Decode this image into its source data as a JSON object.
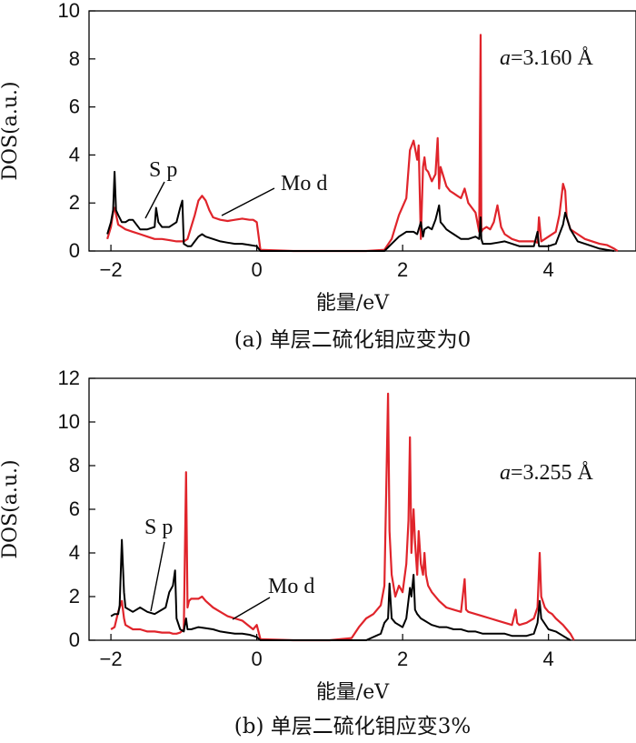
{
  "colors": {
    "s_p": "#000000",
    "mo_d": "#e0242b"
  },
  "chart_data": [
    {
      "type": "line",
      "caption": "(a) 单层二硫化钼应变为0",
      "xlabel": "能量/eV",
      "ylabel": "DOS(a.u.)",
      "xlim": [
        -2.3,
        5.2
      ],
      "ylim": [
        0,
        10
      ],
      "xticks": [
        -2,
        0,
        2,
        4
      ],
      "xtick_labels": [
        "−2",
        "0",
        "2",
        "4"
      ],
      "yticks": [
        0,
        2,
        4,
        6,
        8,
        10
      ],
      "ytick_labels": [
        "0",
        "2",
        "4",
        "6",
        "8",
        "10"
      ],
      "annotation": {
        "prefix": "a",
        "value": "=3.160 Å"
      },
      "series": [
        {
          "name": "Mo d",
          "color": "#e0242b",
          "x": [
            -2.05,
            -2.0,
            -1.97,
            -1.95,
            -1.9,
            -1.85,
            -1.8,
            -1.7,
            -1.6,
            -1.5,
            -1.4,
            -1.3,
            -1.2,
            -1.1,
            -1.0,
            -0.95,
            -0.9,
            -0.85,
            -0.8,
            -0.75,
            -0.7,
            -0.65,
            -0.6,
            -0.5,
            -0.4,
            -0.3,
            -0.2,
            -0.1,
            -0.05,
            0.0,
            0.05,
            0.5,
            1.0,
            1.5,
            1.75,
            1.85,
            1.95,
            2.05,
            2.1,
            2.15,
            2.2,
            2.22,
            2.25,
            2.28,
            2.3,
            2.32,
            2.35,
            2.4,
            2.45,
            2.48,
            2.5,
            2.52,
            2.55,
            2.6,
            2.65,
            2.7,
            2.75,
            2.8,
            2.85,
            2.9,
            2.95,
            3.0,
            3.05,
            3.07,
            3.08,
            3.1,
            3.15,
            3.2,
            3.25,
            3.3,
            3.35,
            3.4,
            3.5,
            3.6,
            3.7,
            3.8,
            3.85,
            3.87,
            3.9,
            3.95,
            4.0,
            4.1,
            4.15,
            4.2,
            4.23,
            4.25,
            4.3,
            4.4,
            4.5,
            4.6,
            4.7,
            4.8,
            4.9,
            4.95
          ],
          "y": [
            0.5,
            1.0,
            1.6,
            1.8,
            1.1,
            1.0,
            0.9,
            0.8,
            0.7,
            0.6,
            0.5,
            0.5,
            0.45,
            0.4,
            0.4,
            0.5,
            1.0,
            1.5,
            2.1,
            2.3,
            2.1,
            1.7,
            1.4,
            1.3,
            1.25,
            1.3,
            1.35,
            1.3,
            1.3,
            1.2,
            0.05,
            0.0,
            0.0,
            0.0,
            0.05,
            0.5,
            1.5,
            2.2,
            4.2,
            4.6,
            3.8,
            4.4,
            0.5,
            3.5,
            3.9,
            3.4,
            3.3,
            2.9,
            3.2,
            4.7,
            2.6,
            3.5,
            3.2,
            2.7,
            2.5,
            2.4,
            2.3,
            2.2,
            2.6,
            2.0,
            1.8,
            1.6,
            0.8,
            9.0,
            0.8,
            0.9,
            1.0,
            0.9,
            1.2,
            1.9,
            1.0,
            0.7,
            0.5,
            0.4,
            0.4,
            0.4,
            0.35,
            1.4,
            0.4,
            0.5,
            0.6,
            0.8,
            1.5,
            2.8,
            2.5,
            1.4,
            0.9,
            0.7,
            0.5,
            0.4,
            0.3,
            0.25,
            0.1,
            0.0
          ]
        },
        {
          "name": "S p",
          "color": "#000000",
          "x": [
            -2.05,
            -2.0,
            -1.97,
            -1.95,
            -1.93,
            -1.9,
            -1.85,
            -1.8,
            -1.75,
            -1.7,
            -1.6,
            -1.5,
            -1.4,
            -1.38,
            -1.35,
            -1.3,
            -1.2,
            -1.1,
            -1.05,
            -1.02,
            -1.0,
            -0.95,
            -0.9,
            -0.85,
            -0.8,
            -0.75,
            -0.7,
            -0.6,
            -0.5,
            -0.4,
            -0.3,
            -0.2,
            -0.1,
            0.0,
            0.05,
            1.75,
            1.85,
            1.95,
            2.05,
            2.15,
            2.2,
            2.25,
            2.28,
            2.3,
            2.35,
            2.4,
            2.45,
            2.5,
            2.52,
            2.55,
            2.6,
            2.65,
            2.7,
            2.8,
            2.9,
            3.0,
            3.05,
            3.07,
            3.08,
            3.1,
            3.2,
            3.3,
            3.4,
            3.5,
            3.6,
            3.7,
            3.8,
            3.85,
            3.87,
            3.9,
            4.0,
            4.1,
            4.2,
            4.23,
            4.3,
            4.4,
            4.5,
            4.6,
            4.7,
            4.8,
            4.9
          ],
          "y": [
            0.7,
            1.2,
            1.7,
            3.3,
            1.7,
            1.5,
            1.2,
            1.2,
            1.3,
            1.3,
            0.9,
            0.9,
            1.0,
            1.8,
            1.2,
            1.0,
            1.0,
            1.2,
            1.8,
            2.1,
            0.3,
            0.2,
            0.2,
            0.4,
            0.6,
            0.7,
            0.6,
            0.5,
            0.4,
            0.35,
            0.3,
            0.3,
            0.25,
            0.2,
            0.0,
            0.0,
            0.3,
            0.6,
            0.8,
            0.8,
            0.7,
            1.2,
            0.6,
            0.9,
            1.0,
            0.9,
            1.3,
            1.9,
            1.2,
            1.1,
            0.9,
            0.8,
            0.7,
            0.5,
            0.5,
            0.6,
            0.5,
            1.4,
            0.5,
            0.3,
            0.3,
            0.35,
            0.4,
            0.3,
            0.2,
            0.2,
            0.2,
            0.8,
            0.2,
            0.2,
            0.2,
            0.3,
            1.1,
            1.6,
            0.9,
            0.4,
            0.3,
            0.2,
            0.1,
            0.05,
            0.0
          ]
        }
      ],
      "series_labels": [
        {
          "name": "S p",
          "text": "S p"
        },
        {
          "name": "Mo d",
          "text": "Mo d"
        }
      ]
    },
    {
      "type": "line",
      "caption": "(b) 单层二硫化钼应变3%",
      "xlabel": "能量/eV",
      "ylabel": "DOS(a.u.)",
      "xlim": [
        -2.3,
        5.2
      ],
      "ylim": [
        0,
        12
      ],
      "xticks": [
        -2,
        0,
        2,
        4
      ],
      "xtick_labels": [
        "−2",
        "0",
        "2",
        "4"
      ],
      "yticks": [
        0,
        2,
        4,
        6,
        8,
        10,
        12
      ],
      "ytick_labels": [
        "0",
        "2",
        "4",
        "6",
        "8",
        "10",
        "12"
      ],
      "annotation": {
        "prefix": "a",
        "value": "=3.255 Å"
      },
      "series": [
        {
          "name": "Mo d",
          "color": "#e0242b",
          "x": [
            -2.0,
            -1.95,
            -1.9,
            -1.85,
            -1.82,
            -1.8,
            -1.75,
            -1.7,
            -1.6,
            -1.5,
            -1.4,
            -1.3,
            -1.2,
            -1.15,
            -1.1,
            -1.05,
            -1.0,
            -0.97,
            -0.95,
            -0.93,
            -0.9,
            -0.8,
            -0.75,
            -0.7,
            -0.6,
            -0.5,
            -0.4,
            -0.3,
            -0.2,
            -0.05,
            0.0,
            0.05,
            0.5,
            1.0,
            1.3,
            1.4,
            1.5,
            1.6,
            1.7,
            1.75,
            1.8,
            1.82,
            1.85,
            1.9,
            1.95,
            2.0,
            2.05,
            2.08,
            2.1,
            2.12,
            2.15,
            2.17,
            2.2,
            2.22,
            2.25,
            2.28,
            2.3,
            2.32,
            2.35,
            2.4,
            2.5,
            2.6,
            2.7,
            2.8,
            2.85,
            2.87,
            2.9,
            3.0,
            3.1,
            3.2,
            3.3,
            3.4,
            3.5,
            3.55,
            3.57,
            3.6,
            3.7,
            3.8,
            3.85,
            3.88,
            3.9,
            3.95,
            4.0,
            4.05,
            4.1,
            4.2,
            4.25,
            4.3,
            4.35
          ],
          "y": [
            0.5,
            0.6,
            1.3,
            1.8,
            1.0,
            0.7,
            0.6,
            0.5,
            0.5,
            0.4,
            0.4,
            0.35,
            0.35,
            0.3,
            0.3,
            0.35,
            0.5,
            7.7,
            1.5,
            1.8,
            1.9,
            1.9,
            2.0,
            1.8,
            1.5,
            1.3,
            1.1,
            1.0,
            0.9,
            0.5,
            0.7,
            0.05,
            0.0,
            0.0,
            0.1,
            0.6,
            1.0,
            1.2,
            1.6,
            2.5,
            11.3,
            5.0,
            3.0,
            2.0,
            2.5,
            2.2,
            3.5,
            5.5,
            9.3,
            4.0,
            6.0,
            4.5,
            3.0,
            5.0,
            3.5,
            3.0,
            4.0,
            3.0,
            2.5,
            2.2,
            1.8,
            1.5,
            1.4,
            1.3,
            2.8,
            1.4,
            1.3,
            1.2,
            1.1,
            1.0,
            0.9,
            0.8,
            0.7,
            1.4,
            0.8,
            0.7,
            0.8,
            1.0,
            1.5,
            4.0,
            2.0,
            1.5,
            1.3,
            1.2,
            1.0,
            0.7,
            0.5,
            0.3,
            0.0
          ]
        },
        {
          "name": "S p",
          "color": "#000000",
          "x": [
            -2.0,
            -1.95,
            -1.9,
            -1.88,
            -1.85,
            -1.82,
            -1.8,
            -1.7,
            -1.6,
            -1.5,
            -1.4,
            -1.3,
            -1.25,
            -1.2,
            -1.15,
            -1.12,
            -1.1,
            -1.05,
            -1.0,
            -0.97,
            -0.95,
            -0.9,
            -0.8,
            -0.7,
            -0.6,
            -0.5,
            -0.4,
            -0.3,
            -0.2,
            -0.1,
            -0.05,
            0.0,
            0.05,
            1.5,
            1.7,
            1.75,
            1.8,
            1.82,
            1.85,
            1.9,
            2.0,
            2.05,
            2.1,
            2.12,
            2.15,
            2.17,
            2.2,
            2.25,
            2.3,
            2.35,
            2.4,
            2.5,
            2.6,
            2.7,
            2.8,
            2.9,
            3.0,
            3.1,
            3.2,
            3.3,
            3.4,
            3.5,
            3.6,
            3.7,
            3.8,
            3.85,
            3.88,
            3.9,
            4.0,
            4.1,
            4.2,
            4.25,
            4.3
          ],
          "y": [
            1.1,
            1.2,
            1.2,
            1.6,
            4.6,
            2.2,
            1.5,
            1.3,
            1.5,
            1.3,
            1.2,
            1.4,
            1.5,
            2.2,
            2.5,
            3.2,
            1.0,
            0.5,
            0.4,
            1.0,
            0.5,
            0.5,
            0.6,
            0.55,
            0.5,
            0.4,
            0.35,
            0.3,
            0.3,
            0.25,
            0.2,
            0.15,
            0.0,
            0.0,
            0.3,
            0.8,
            1.0,
            2.6,
            1.0,
            0.8,
            0.6,
            1.0,
            2.4,
            2.0,
            3.0,
            1.4,
            1.2,
            1.0,
            0.9,
            0.8,
            0.7,
            0.6,
            0.6,
            0.5,
            0.5,
            0.4,
            0.4,
            0.3,
            0.3,
            0.3,
            0.3,
            0.2,
            0.2,
            0.2,
            0.3,
            0.8,
            1.8,
            1.0,
            0.5,
            0.4,
            0.2,
            0.1,
            0.0
          ]
        }
      ],
      "series_labels": [
        {
          "name": "S p",
          "text": "S p"
        },
        {
          "name": "Mo d",
          "text": "Mo d"
        }
      ]
    }
  ]
}
